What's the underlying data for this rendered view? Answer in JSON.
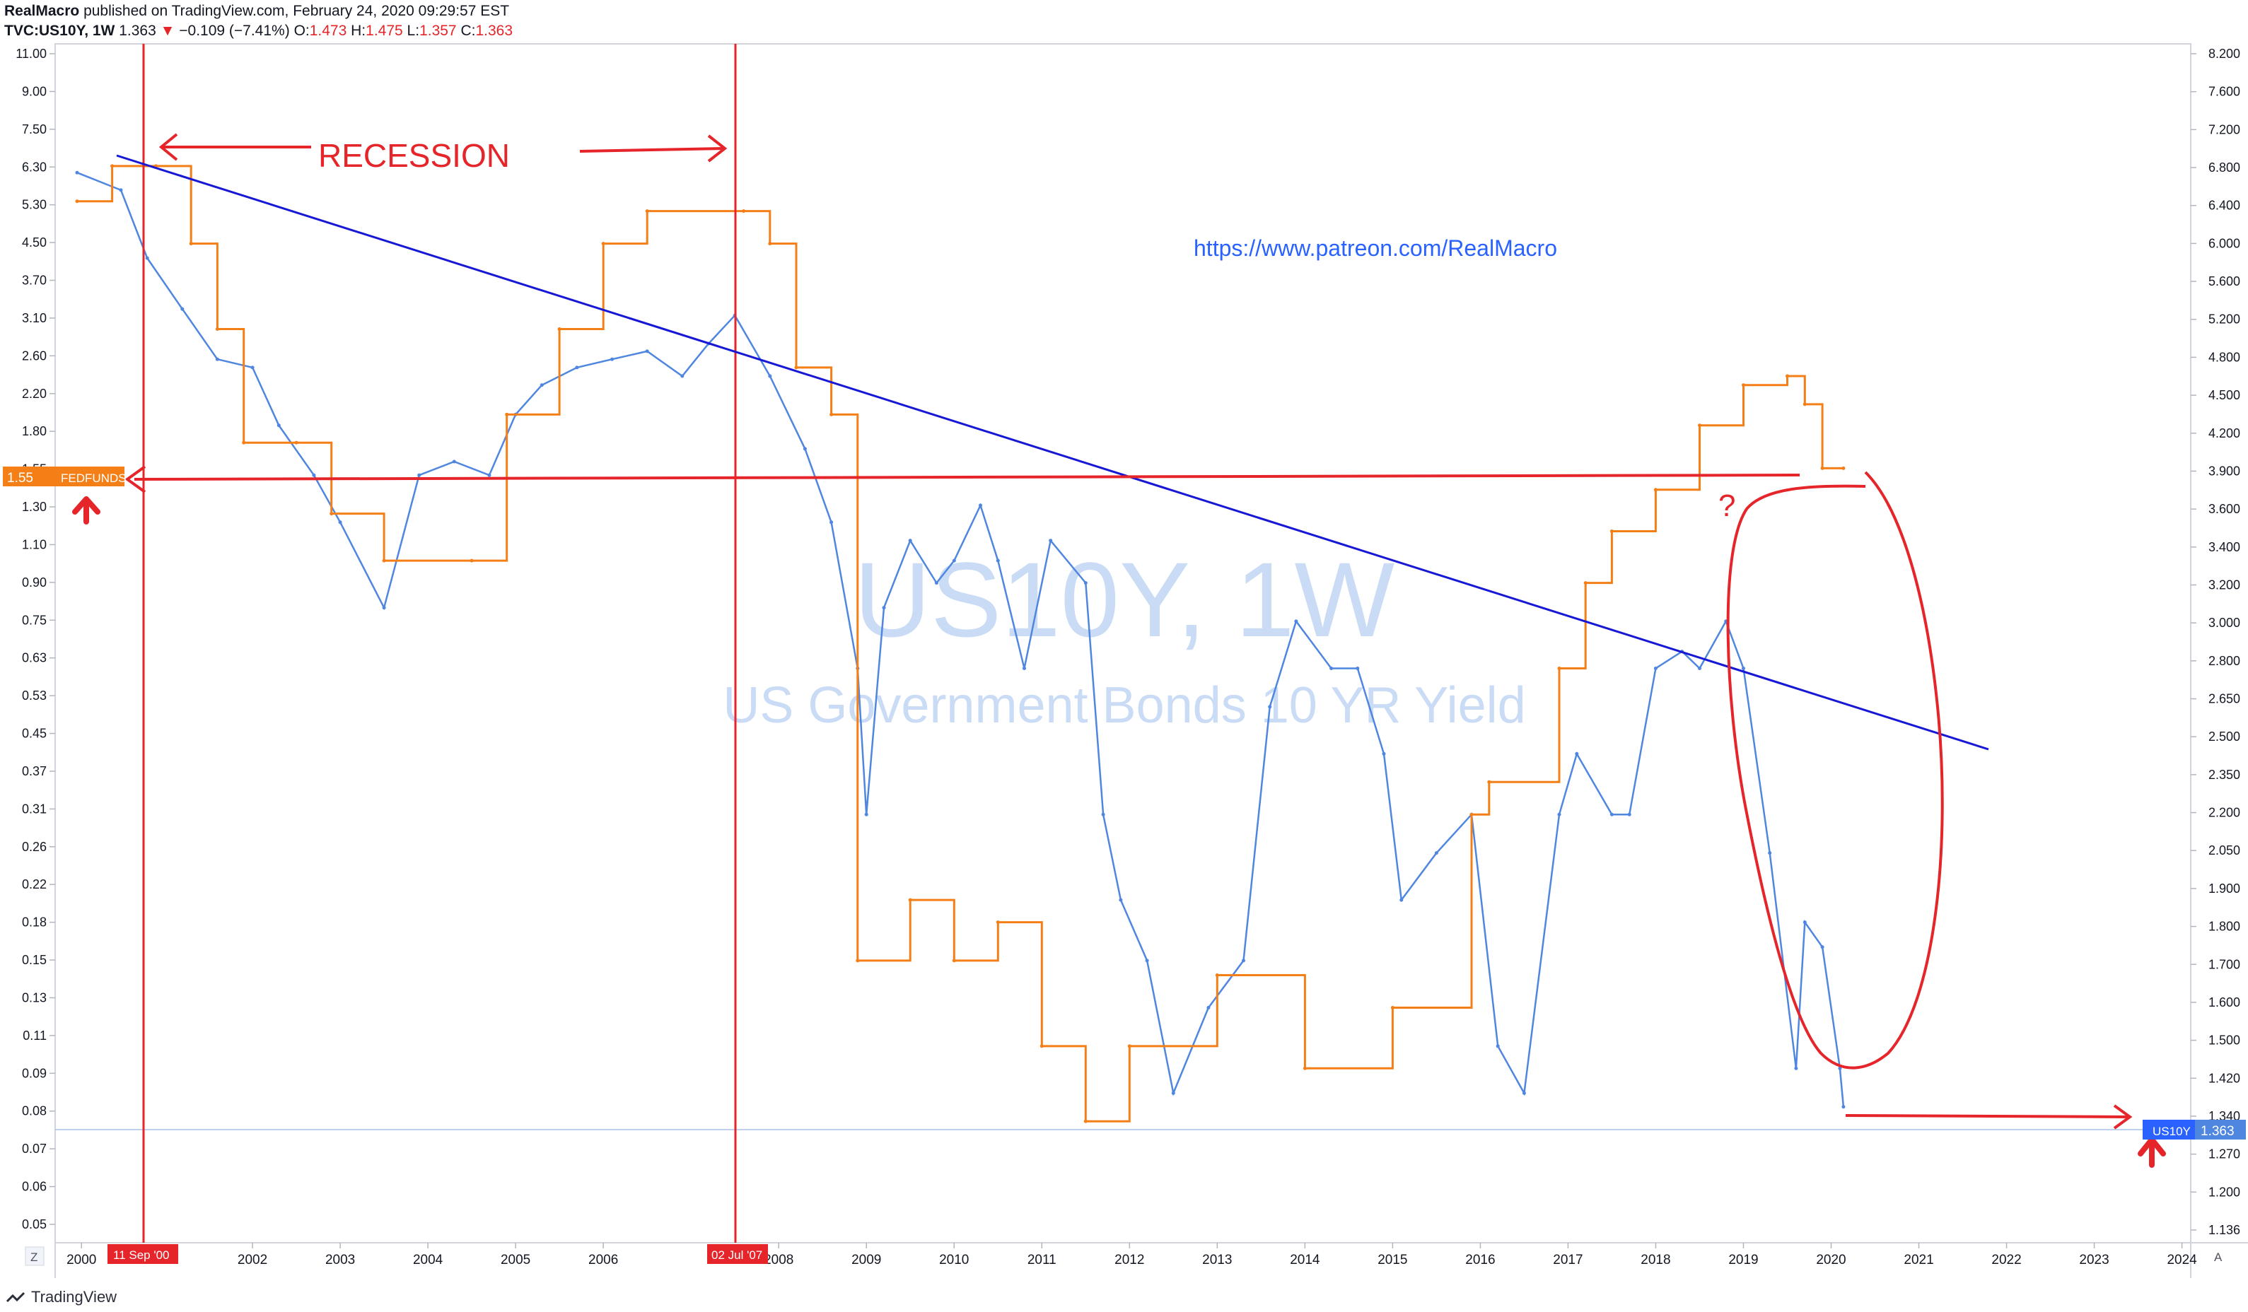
{
  "header": {
    "publisher": "RealMacro",
    "published_text": "published on TradingView.com, February 24, 2020 09:29:57 EST",
    "symbol": "TVC:US10Y, 1W",
    "last": "1.363",
    "change": "−0.109 (−7.41%)",
    "open_label": "O:",
    "open": "1.473",
    "high_label": "H:",
    "high": "1.475",
    "low_label": "L:",
    "low": "1.357",
    "close_label": "C:",
    "close": "1.363"
  },
  "watermark": {
    "title": "US10Y, 1W",
    "subtitle": "US Government Bonds 10 YR Yield"
  },
  "annotations": {
    "recession": "RECESSION",
    "url": "https://www.patreon.com/RealMacro",
    "question": "?"
  },
  "left_axis": {
    "ticks": [
      "11.00",
      "9.00",
      "7.50",
      "6.30",
      "5.30",
      "4.50",
      "3.70",
      "3.10",
      "2.60",
      "2.20",
      "1.80",
      "1.55",
      "1.30",
      "1.10",
      "0.90",
      "0.75",
      "0.63",
      "0.53",
      "0.45",
      "0.37",
      "0.31",
      "0.26",
      "0.22",
      "0.18",
      "0.15",
      "0.13",
      "0.11",
      "0.09",
      "0.08",
      "0.07",
      "0.06",
      "0.05"
    ],
    "badge_value": "1.55",
    "badge_label": "FEDFUNDS"
  },
  "right_axis": {
    "ticks": [
      "8.200",
      "7.600",
      "7.200",
      "6.800",
      "6.400",
      "6.000",
      "5.600",
      "5.200",
      "4.800",
      "4.500",
      "4.200",
      "3.900",
      "3.600",
      "3.400",
      "3.200",
      "3.000",
      "2.800",
      "2.650",
      "2.500",
      "2.350",
      "2.200",
      "2.050",
      "1.900",
      "1.800",
      "1.700",
      "1.600",
      "1.500",
      "1.420",
      "1.340",
      "1.270",
      "1.200",
      "1.136"
    ],
    "badge_label": "US10Y",
    "badge_value": "1.363"
  },
  "x_axis": {
    "ticks": [
      "2000",
      "2002",
      "2003",
      "2004",
      "2005",
      "2006",
      "2008",
      "2009",
      "2010",
      "2011",
      "2012",
      "2013",
      "2014",
      "2015",
      "2016",
      "2017",
      "2018",
      "2019",
      "2020",
      "2021",
      "2022",
      "2023",
      "2024"
    ],
    "marker_1": "11 Sep '00",
    "marker_2": "02 Jul '07",
    "left_corner": "Z",
    "right_corner": "A"
  },
  "footer": {
    "brand": "TradingView"
  },
  "colors": {
    "us10y": "#4f86e0",
    "fedfunds": "#f57f17",
    "trendline": "#1717d6",
    "annotation": "#e5252a",
    "watermark": "#c9dbf5"
  },
  "chart_data": {
    "type": "line",
    "series": [
      {
        "name": "US10Y",
        "x": [
          2000.0,
          2000.5,
          2000.8,
          2001.2,
          2001.6,
          2002.0,
          2002.3,
          2002.7,
          2003.0,
          2003.5,
          2003.9,
          2004.3,
          2004.7,
          2005.0,
          2005.3,
          2005.7,
          2006.1,
          2006.5,
          2006.9,
          2007.2,
          2007.5,
          2007.9,
          2008.3,
          2008.6,
          2008.9,
          2009.0,
          2009.2,
          2009.5,
          2009.8,
          2010.0,
          2010.3,
          2010.5,
          2010.8,
          2011.1,
          2011.5,
          2011.7,
          2011.9,
          2012.2,
          2012.5,
          2012.9,
          2013.3,
          2013.6,
          2013.9,
          2014.3,
          2014.6,
          2014.9,
          2015.1,
          2015.5,
          2015.9,
          2016.2,
          2016.5,
          2016.9,
          2017.1,
          2017.5,
          2017.7,
          2018.0,
          2018.3,
          2018.5,
          2018.8,
          2019.0,
          2019.3,
          2019.6,
          2019.7,
          2019.9,
          2020.1,
          2020.14
        ],
        "y": [
          6.3,
          5.8,
          4.2,
          3.3,
          2.6,
          2.5,
          1.9,
          1.5,
          1.2,
          0.8,
          1.5,
          1.6,
          1.5,
          2.0,
          2.3,
          2.5,
          2.6,
          2.7,
          2.4,
          2.8,
          3.2,
          2.4,
          1.7,
          1.2,
          0.6,
          0.3,
          0.8,
          1.1,
          0.9,
          1.0,
          1.3,
          1.0,
          0.6,
          1.1,
          0.9,
          0.3,
          0.2,
          0.15,
          0.08,
          0.12,
          0.15,
          0.5,
          0.75,
          0.6,
          0.6,
          0.4,
          0.2,
          0.25,
          0.3,
          0.1,
          0.08,
          0.3,
          0.4,
          0.3,
          0.3,
          0.6,
          0.65,
          0.6,
          0.75,
          0.6,
          0.25,
          0.09,
          0.18,
          0.16,
          0.09,
          0.075
        ]
      },
      {
        "name": "FEDFUNDS",
        "x": [
          2000.0,
          2000.4,
          2000.9,
          2001.3,
          2001.6,
          2001.9,
          2002.5,
          2002.9,
          2003.5,
          2004.5,
          2004.9,
          2005.5,
          2006.0,
          2006.5,
          2007.6,
          2007.9,
          2008.2,
          2008.6,
          2008.9,
          2009.5,
          2010.0,
          2010.5,
          2011.0,
          2011.5,
          2012.0,
          2013.0,
          2014.0,
          2015.0,
          2015.9,
          2016.1,
          2016.9,
          2017.2,
          2017.5,
          2018.0,
          2018.5,
          2019.0,
          2019.5,
          2019.7,
          2019.9,
          2020.14
        ],
        "y": [
          5.5,
          6.5,
          6.5,
          4.5,
          3.0,
          1.75,
          1.75,
          1.25,
          1.0,
          1.0,
          2.0,
          3.0,
          4.5,
          5.25,
          5.25,
          4.5,
          2.5,
          2.0,
          0.15,
          0.2,
          0.15,
          0.18,
          0.1,
          0.07,
          0.1,
          0.14,
          0.09,
          0.12,
          0.3,
          0.35,
          0.6,
          0.9,
          1.15,
          1.4,
          1.9,
          2.3,
          2.4,
          2.1,
          1.55,
          1.55
        ]
      }
    ],
    "xlim": [
      1999.75,
      2024.1
    ],
    "ylim": [
      0.045,
      11.0
    ],
    "y_scale": "log",
    "grid": true,
    "legend": "none"
  }
}
